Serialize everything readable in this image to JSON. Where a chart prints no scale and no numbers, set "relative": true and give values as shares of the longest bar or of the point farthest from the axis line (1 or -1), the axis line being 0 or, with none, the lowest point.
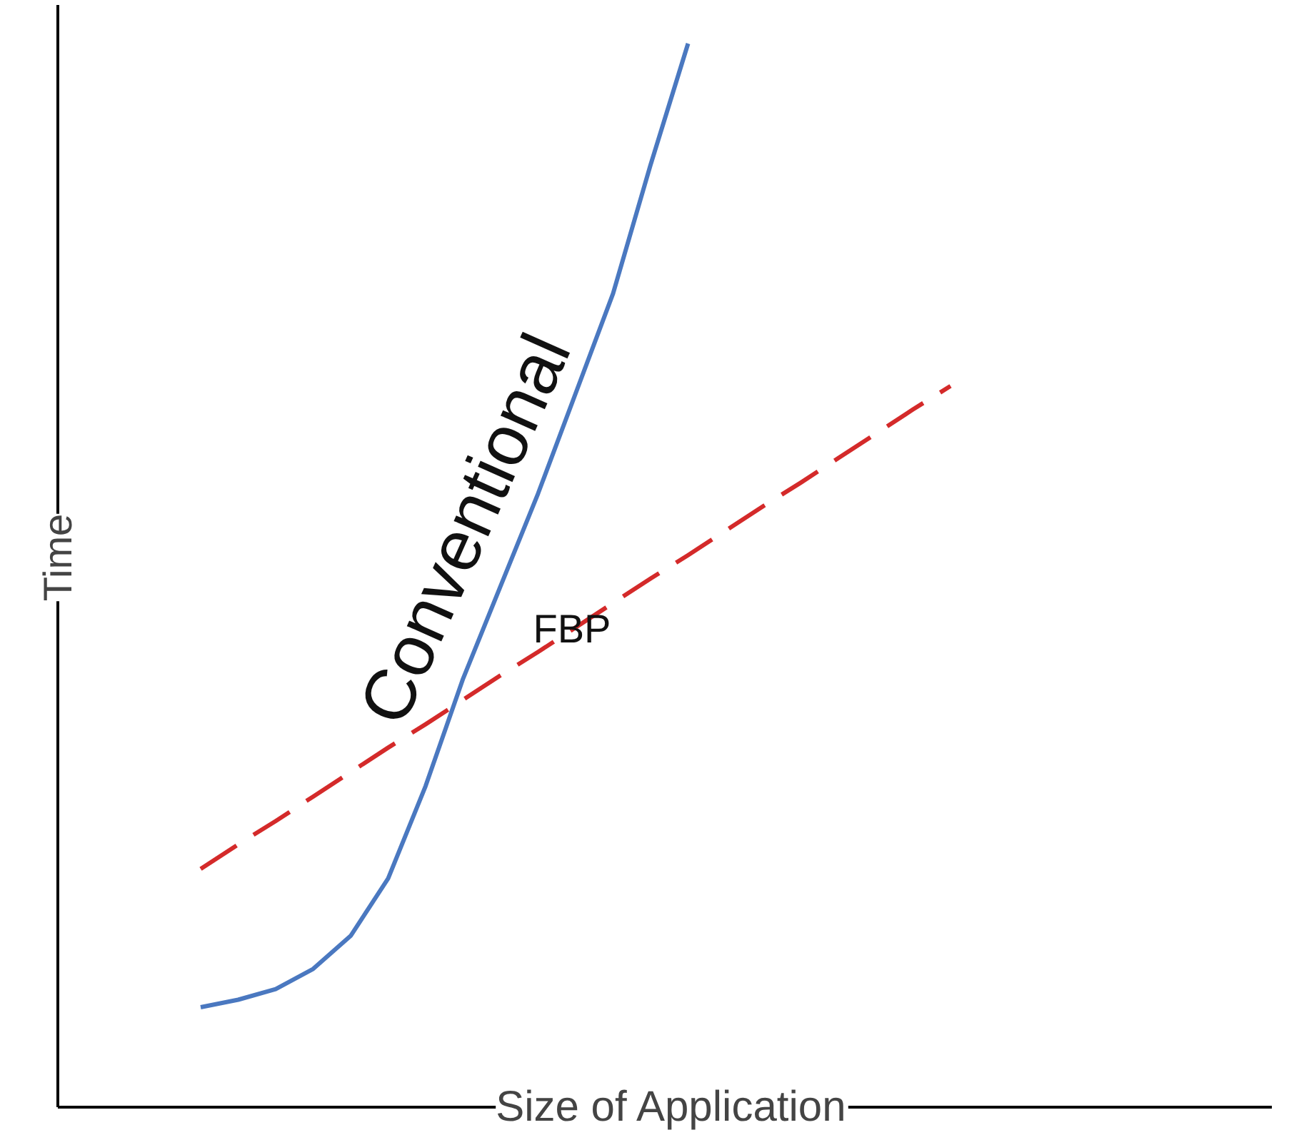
{
  "chart_data": {
    "type": "line",
    "relative": true,
    "xlabel": "Size of Application",
    "ylabel": "Time",
    "legend": false,
    "grid": false,
    "categories": [
      null,
      null,
      null,
      null,
      null,
      null,
      null,
      null,
      null,
      null,
      null,
      null,
      null,
      null,
      null,
      null,
      null,
      null,
      null,
      null,
      null
    ],
    "series": [
      {
        "name": "Conventional",
        "color": "#4a78c0",
        "line_style": "solid",
        "values": [
          0.094,
          0.101,
          0.111,
          0.13,
          0.161,
          0.215,
          0.302,
          0.403,
          0.49,
          0.577,
          0.671,
          0.765,
          0.886,
          1.0,
          null,
          null,
          null,
          null,
          null,
          null,
          null
        ]
      },
      {
        "name": "FBP",
        "color": "#d42a2a",
        "line_style": "dashed",
        "values": [
          0.224,
          0.247,
          0.269,
          0.292,
          0.315,
          0.338,
          0.36,
          0.383,
          0.406,
          0.428,
          0.451,
          0.474,
          0.497,
          0.519,
          0.542,
          0.565,
          0.587,
          0.61,
          0.633,
          0.656,
          0.678
        ]
      }
    ]
  }
}
